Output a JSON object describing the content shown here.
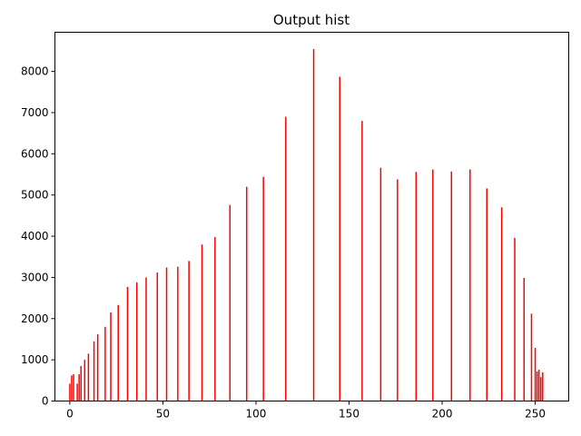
{
  "chart_data": {
    "type": "bar",
    "title": "Output hist",
    "xlabel": "",
    "ylabel": "",
    "xlim": [
      -8,
      268
    ],
    "ylim": [
      0,
      8950
    ],
    "xticks": [
      0,
      50,
      100,
      150,
      200,
      250
    ],
    "yticks": [
      0,
      1000,
      2000,
      3000,
      4000,
      5000,
      6000,
      7000,
      8000
    ],
    "grid": false,
    "bar_color": "#ff0000",
    "x": [
      0,
      1,
      2,
      4,
      5,
      6,
      8,
      10,
      13,
      15,
      19,
      22,
      26,
      31,
      36,
      41,
      47,
      52,
      58,
      64,
      71,
      78,
      86,
      95,
      104,
      116,
      131,
      145,
      157,
      167,
      176,
      186,
      195,
      205,
      215,
      224,
      232,
      239,
      244,
      248,
      250,
      251,
      252,
      253,
      254
    ],
    "values": [
      420,
      620,
      650,
      420,
      650,
      850,
      1000,
      1150,
      1450,
      1620,
      1800,
      2150,
      2330,
      2770,
      2880,
      3000,
      3120,
      3240,
      3260,
      3400,
      3800,
      3980,
      4760,
      5200,
      5440,
      6900,
      8540,
      7870,
      6800,
      5660,
      5380,
      5560,
      5620,
      5570,
      5620,
      5160,
      4700,
      3960,
      2990,
      2120,
      1290,
      720,
      760,
      580,
      700
    ]
  }
}
